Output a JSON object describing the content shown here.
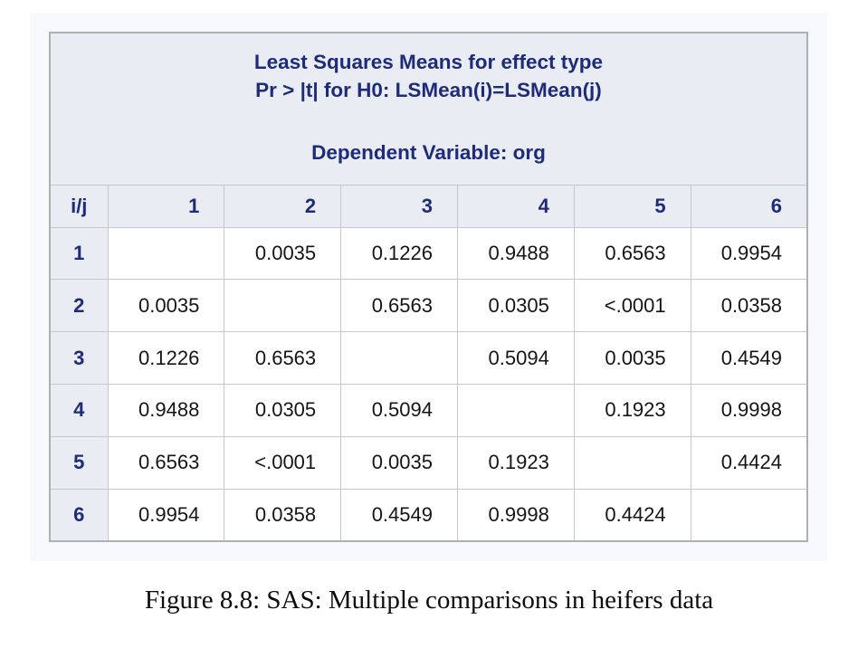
{
  "table": {
    "title_line1": "Least Squares Means for effect type",
    "title_line2": "Pr > |t| for H0: LSMean(i)=LSMean(j)",
    "title_line3": "Dependent Variable: org",
    "corner_label": "i/j",
    "column_headers": [
      "1",
      "2",
      "3",
      "4",
      "5",
      "6"
    ],
    "rows": [
      {
        "label": "1",
        "values": [
          "",
          "0.0035",
          "0.1226",
          "0.9488",
          "0.6563",
          "0.9954"
        ]
      },
      {
        "label": "2",
        "values": [
          "0.0035",
          "",
          "0.6563",
          "0.0305",
          "<.0001",
          "0.0358"
        ]
      },
      {
        "label": "3",
        "values": [
          "0.1226",
          "0.6563",
          "",
          "0.5094",
          "0.0035",
          "0.4549"
        ]
      },
      {
        "label": "4",
        "values": [
          "0.9488",
          "0.0305",
          "0.5094",
          "",
          "0.1923",
          "0.9998"
        ]
      },
      {
        "label": "5",
        "values": [
          "0.6563",
          "<.0001",
          "0.0035",
          "0.1923",
          "",
          "0.4424"
        ]
      },
      {
        "label": "6",
        "values": [
          "0.9954",
          "0.0358",
          "0.4549",
          "0.9998",
          "0.4424",
          ""
        ]
      }
    ]
  },
  "caption": "Figure 8.8: SAS: Multiple comparisons in heifers data",
  "colors": {
    "panel_background": "#f8f9fc",
    "header_background": "#eaecf4",
    "header_text": "#1e2b78",
    "cell_border": "#c5c7c9",
    "outer_border": "#aeb0b3",
    "data_text": "#151515"
  },
  "chart_data": {
    "type": "table",
    "title": "Least Squares Means for effect type — Pr > |t| for H0: LSMean(i)=LSMean(j) — Dependent Variable: org",
    "row_labels": [
      "1",
      "2",
      "3",
      "4",
      "5",
      "6"
    ],
    "column_labels": [
      "1",
      "2",
      "3",
      "4",
      "5",
      "6"
    ],
    "values": [
      [
        null,
        0.0035,
        0.1226,
        0.9488,
        0.6563,
        0.9954
      ],
      [
        0.0035,
        null,
        0.6563,
        0.0305,
        "<.0001",
        0.0358
      ],
      [
        0.1226,
        0.6563,
        null,
        0.5094,
        0.0035,
        0.4549
      ],
      [
        0.9488,
        0.0305,
        0.5094,
        null,
        0.1923,
        0.9998
      ],
      [
        0.6563,
        "<.0001",
        0.0035,
        0.1923,
        null,
        0.4424
      ],
      [
        0.9954,
        0.0358,
        0.4549,
        0.9998,
        0.4424,
        null
      ]
    ]
  }
}
